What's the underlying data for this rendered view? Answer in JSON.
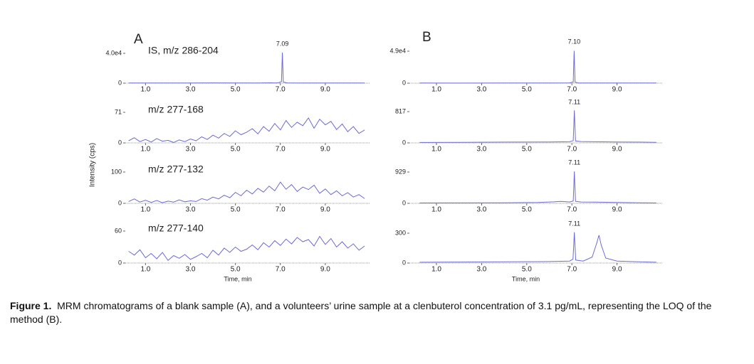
{
  "figure_labels": [
    "A",
    "B"
  ],
  "y_label": "Intensity (cps)",
  "caption": {
    "label": "Figure 1.",
    "text": "MRM chromatograms of a blank sample (A), and a volunteers’ urine sample at a clenbuterol concentration of 3.1 pg/mL, representing the LOQ of the method (B)."
  },
  "chart_data": [
    {
      "type": "line",
      "title": "IS, m/z 286-204",
      "color": "#6b6bd8",
      "x": [
        0.25,
        2,
        4,
        6,
        6.9,
        7.05,
        7.09,
        7.13,
        7.3,
        8,
        10,
        10.75
      ],
      "values": [
        300,
        200,
        400,
        300,
        500,
        2000,
        41000,
        1500,
        400,
        300,
        200,
        300
      ],
      "annotations": [
        {
          "x": 7.09,
          "text": "7.09"
        }
      ],
      "xlim": [
        0.1,
        11
      ],
      "xticks": [
        {
          "value": 1,
          "label": "1.0"
        },
        {
          "value": 3,
          "label": "3.0"
        },
        {
          "value": 5,
          "label": "5.0"
        },
        {
          "value": 7,
          "label": "7.0"
        },
        {
          "value": 9,
          "label": "9.0"
        }
      ],
      "ylim": [
        0,
        40000
      ],
      "yticks": [
        0,
        {
          "value": 40000,
          "label": "4.0e4"
        }
      ]
    },
    {
      "type": "line",
      "title": "m/z 277-168",
      "color": "#6b6bd8",
      "x": [
        0.25,
        0.5,
        0.75,
        1,
        1.25,
        1.5,
        1.75,
        2,
        2.25,
        2.5,
        2.75,
        3,
        3.25,
        3.5,
        3.75,
        4,
        4.25,
        4.5,
        4.75,
        5,
        5.25,
        5.5,
        5.75,
        6,
        6.25,
        6.5,
        6.75,
        7,
        7.25,
        7.5,
        7.75,
        8,
        8.25,
        8.5,
        8.75,
        9,
        9.25,
        9.5,
        9.75,
        10,
        10.25,
        10.5,
        10.75
      ],
      "values": [
        5,
        12,
        3,
        8,
        2,
        10,
        4,
        6,
        1,
        7,
        3,
        9,
        5,
        14,
        8,
        18,
        11,
        22,
        15,
        28,
        19,
        25,
        33,
        21,
        38,
        27,
        45,
        30,
        52,
        36,
        48,
        40,
        58,
        34,
        55,
        42,
        50,
        31,
        44,
        26,
        38,
        22,
        30
      ],
      "xlim": [
        0.1,
        11
      ],
      "xticks": [
        {
          "value": 1,
          "label": "1.0"
        },
        {
          "value": 3,
          "label": "3.0"
        },
        {
          "value": 5,
          "label": "5.0"
        },
        {
          "value": 7,
          "label": "7.0"
        },
        {
          "value": 9,
          "label": "9.0"
        }
      ],
      "ylim": [
        0,
        71
      ],
      "yticks": [
        0,
        71
      ]
    },
    {
      "type": "line",
      "title": "m/z 277-132",
      "color": "#6b6bd8",
      "x": [
        0.25,
        0.5,
        0.75,
        1,
        1.25,
        1.5,
        1.75,
        2,
        2.25,
        2.5,
        2.75,
        3,
        3.25,
        3.5,
        3.75,
        4,
        4.25,
        4.5,
        4.75,
        5,
        5.25,
        5.5,
        5.75,
        6,
        6.25,
        6.5,
        6.75,
        7,
        7.25,
        7.5,
        7.75,
        8,
        8.25,
        8.5,
        8.75,
        9,
        9.25,
        9.5,
        9.75,
        10,
        10.25,
        10.5,
        10.75
      ],
      "values": [
        6,
        14,
        4,
        10,
        3,
        9,
        2,
        7,
        4,
        11,
        5,
        8,
        6,
        15,
        10,
        20,
        14,
        26,
        18,
        35,
        24,
        42,
        30,
        48,
        36,
        55,
        40,
        68,
        45,
        60,
        38,
        52,
        44,
        58,
        32,
        46,
        28,
        40,
        24,
        34,
        20,
        28,
        15
      ],
      "xlim": [
        0.1,
        11
      ],
      "xticks": [
        {
          "value": 1,
          "label": "1.0"
        },
        {
          "value": 3,
          "label": "3.0"
        },
        {
          "value": 5,
          "label": "5.0"
        },
        {
          "value": 7,
          "label": "7.0"
        },
        {
          "value": 9,
          "label": "9.0"
        }
      ],
      "ylim": [
        0,
        100
      ],
      "yticks": [
        0,
        100
      ]
    },
    {
      "type": "line",
      "title": "m/z 277-140",
      "color": "#6b6bd8",
      "x": [
        0.25,
        0.5,
        0.75,
        1,
        1.25,
        1.5,
        1.75,
        2,
        2.25,
        2.5,
        2.75,
        3,
        3.25,
        3.5,
        3.75,
        4,
        4.25,
        4.5,
        4.75,
        5,
        5.25,
        5.5,
        5.75,
        6,
        6.25,
        6.5,
        6.75,
        7,
        7.25,
        7.5,
        7.75,
        8,
        8.25,
        8.5,
        8.75,
        9,
        9.25,
        9.5,
        9.75,
        10,
        10.25,
        10.5,
        10.75
      ],
      "values": [
        22,
        15,
        25,
        10,
        18,
        8,
        20,
        5,
        14,
        9,
        16,
        7,
        12,
        18,
        10,
        24,
        15,
        28,
        20,
        30,
        22,
        26,
        34,
        25,
        38,
        30,
        42,
        33,
        45,
        36,
        48,
        40,
        44,
        32,
        50,
        35,
        46,
        30,
        40,
        28,
        36,
        24,
        32
      ],
      "xlabel": "Time, min",
      "xlim": [
        0.1,
        11
      ],
      "xticks": [
        {
          "value": 1,
          "label": "1.0"
        },
        {
          "value": 3,
          "label": "3.0"
        },
        {
          "value": 5,
          "label": "5.0"
        },
        {
          "value": 7,
          "label": "7.0"
        },
        {
          "value": 9,
          "label": "9.0"
        }
      ],
      "ylim": [
        0,
        60
      ],
      "yticks": [
        0,
        60
      ]
    },
    {
      "type": "line",
      "color": "#6b6bd8",
      "x": [
        0.25,
        2,
        4,
        6,
        6.9,
        7.06,
        7.1,
        7.14,
        7.3,
        8,
        10,
        10.75
      ],
      "values": [
        200,
        150,
        300,
        250,
        400,
        1800,
        49500,
        1500,
        300,
        250,
        200,
        250
      ],
      "annotations": [
        {
          "x": 7.1,
          "text": "7.10"
        }
      ],
      "xlim": [
        -0.2,
        11
      ],
      "xticks": [
        {
          "value": 1,
          "label": "1.0"
        },
        {
          "value": 3,
          "label": "3.0"
        },
        {
          "value": 5,
          "label": "5.0"
        },
        {
          "value": 7,
          "label": "7.0"
        },
        {
          "value": 9,
          "label": "9.0"
        }
      ],
      "ylim": [
        0,
        49000
      ],
      "yticks": [
        0,
        {
          "value": 49000,
          "label": "4.9e4"
        }
      ]
    },
    {
      "type": "line",
      "color": "#6b6bd8",
      "x": [
        0.25,
        2,
        4,
        6,
        6.9,
        7.06,
        7.11,
        7.16,
        7.4,
        8,
        9,
        10,
        10.75
      ],
      "values": [
        12,
        15,
        20,
        25,
        30,
        60,
        850,
        50,
        35,
        30,
        25,
        20,
        15
      ],
      "annotations": [
        {
          "x": 7.11,
          "text": "7.11"
        }
      ],
      "xlim": [
        -0.2,
        11
      ],
      "xticks": [
        {
          "value": 1,
          "label": "1.0"
        },
        {
          "value": 3,
          "label": "3.0"
        },
        {
          "value": 5,
          "label": "5.0"
        },
        {
          "value": 7,
          "label": "7.0"
        },
        {
          "value": 9,
          "label": "9.0"
        }
      ],
      "ylim": [
        0,
        817
      ],
      "yticks": [
        0,
        817
      ]
    },
    {
      "type": "line",
      "color": "#6b6bd8",
      "x": [
        0.25,
        2,
        4,
        5.5,
        6.2,
        6.5,
        6.9,
        7.06,
        7.11,
        7.16,
        7.4,
        8,
        9,
        10,
        10.75
      ],
      "values": [
        10,
        12,
        15,
        25,
        45,
        60,
        40,
        70,
        950,
        60,
        40,
        35,
        25,
        15,
        10
      ],
      "annotations": [
        {
          "x": 7.11,
          "text": "7.11"
        }
      ],
      "xlim": [
        -0.2,
        11
      ],
      "xticks": [
        {
          "value": 1,
          "label": "1.0"
        },
        {
          "value": 3,
          "label": "3.0"
        },
        {
          "value": 5,
          "label": "5.0"
        },
        {
          "value": 7,
          "label": "7.0"
        },
        {
          "value": 9,
          "label": "9.0"
        }
      ],
      "ylim": [
        0,
        929
      ],
      "yticks": [
        0,
        929
      ]
    },
    {
      "type": "line",
      "color": "#6b6bd8",
      "x": [
        0.25,
        2,
        4,
        6,
        6.9,
        7.05,
        7.11,
        7.17,
        7.5,
        7.9,
        8.1,
        8.2,
        8.3,
        8.5,
        9,
        10,
        10.75
      ],
      "values": [
        8,
        10,
        12,
        15,
        20,
        40,
        310,
        30,
        20,
        60,
        200,
        280,
        180,
        50,
        20,
        12,
        8
      ],
      "annotations": [
        {
          "x": 7.11,
          "text": "7.11"
        }
      ],
      "xlabel": "Time, min",
      "xlim": [
        -0.2,
        11
      ],
      "xticks": [
        {
          "value": 1,
          "label": "1.0"
        },
        {
          "value": 3,
          "label": "3.0"
        },
        {
          "value": 5,
          "label": "5.0"
        },
        {
          "value": 7,
          "label": "7.0"
        },
        {
          "value": 9,
          "label": "9.0"
        }
      ],
      "ylim": [
        0,
        300
      ],
      "yticks": [
        0,
        300
      ]
    }
  ]
}
